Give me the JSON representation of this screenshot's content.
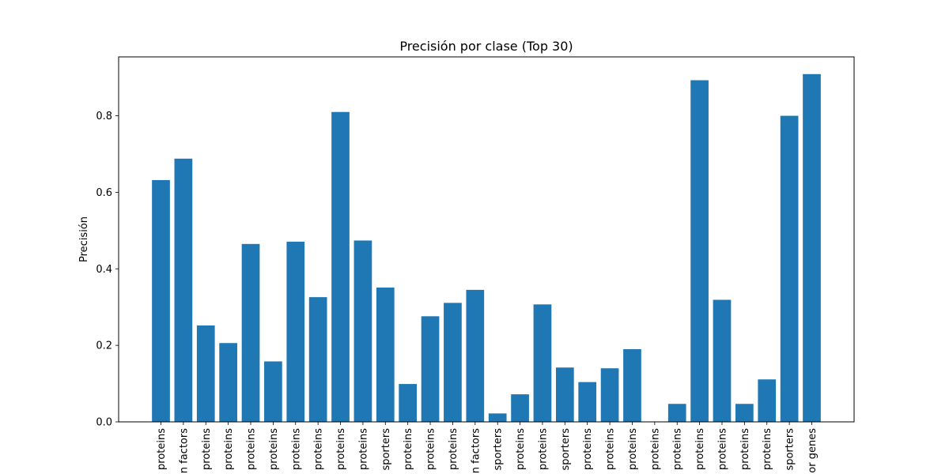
{
  "chart_data": {
    "type": "bar",
    "title": "Precisión por clase (Top 30)",
    "xlabel": "",
    "ylabel": "Precisión",
    "ylim": [
      0,
      0.954
    ],
    "yticks": [
      0.0,
      0.2,
      0.4,
      0.6,
      0.8
    ],
    "ytick_labels": [
      "0.0",
      "0.2",
      "0.4",
      "0.6",
      "0.8"
    ],
    "grid": false,
    "bar_color": "#1f77b4",
    "categories": [
      "proteins",
      "n factors",
      "proteins",
      "proteins",
      "proteins",
      "proteins",
      "proteins",
      "proteins",
      "proteins",
      "proteins",
      "sporters",
      "proteins",
      "proteins",
      "proteins",
      "n factors",
      "sporters",
      "proteins",
      "proteins",
      "sporters",
      "proteins",
      "proteins",
      "proteins",
      "proteins",
      "proteins",
      "proteins",
      "proteins",
      "proteins",
      "proteins",
      "sporters",
      "or genes"
    ],
    "values": [
      0.632,
      0.688,
      0.252,
      0.206,
      0.465,
      0.158,
      0.471,
      0.326,
      0.81,
      0.474,
      0.351,
      0.099,
      0.276,
      0.311,
      0.345,
      0.022,
      0.072,
      0.307,
      0.142,
      0.104,
      0.14,
      0.19,
      0.0,
      0.047,
      0.893,
      0.319,
      0.047,
      0.111,
      0.8,
      0.909
    ]
  }
}
